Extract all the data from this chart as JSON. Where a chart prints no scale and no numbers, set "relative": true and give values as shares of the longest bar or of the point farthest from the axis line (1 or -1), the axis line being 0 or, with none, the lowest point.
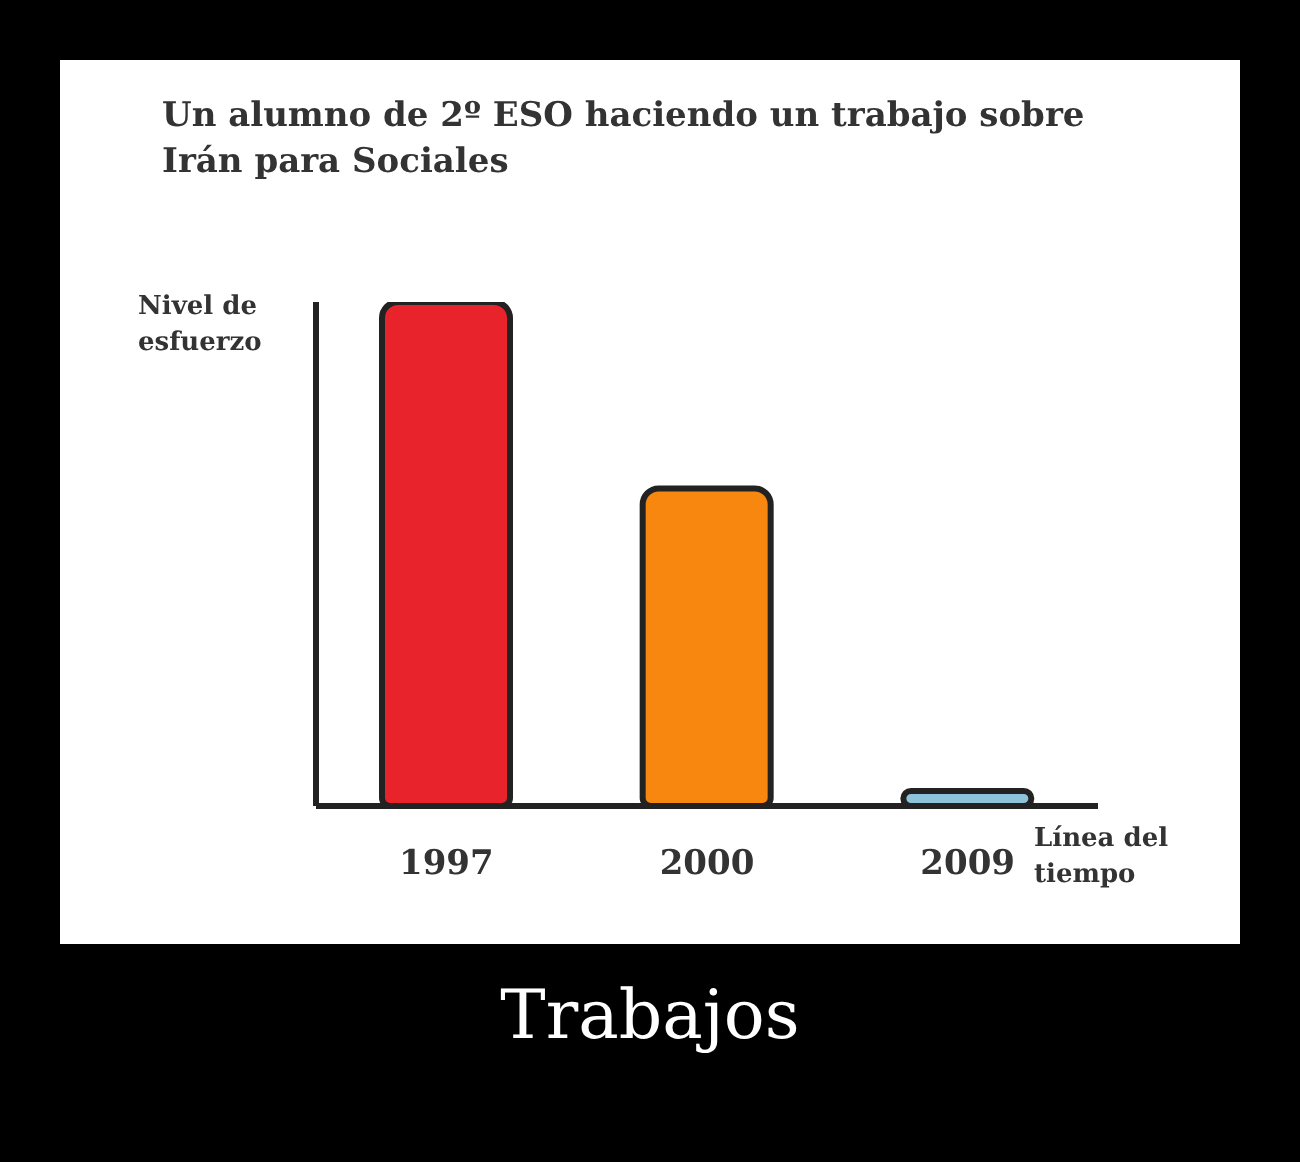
{
  "chart_data": {
    "type": "bar",
    "title": "Un alumno de 2º ESO haciendo un trabajo sobre Irán para Sociales",
    "ylabel": "Nivel de esfuerzo",
    "xlabel": "Línea del tiempo",
    "categories": [
      "1997",
      "2000",
      "2009"
    ],
    "values": [
      1,
      0.63,
      0.03
    ],
    "colors": [
      "#e8232b",
      "#f7870f",
      "#8fc3dc"
    ],
    "relative": true,
    "grid": false,
    "annotations": [
      "Trabajos"
    ]
  }
}
